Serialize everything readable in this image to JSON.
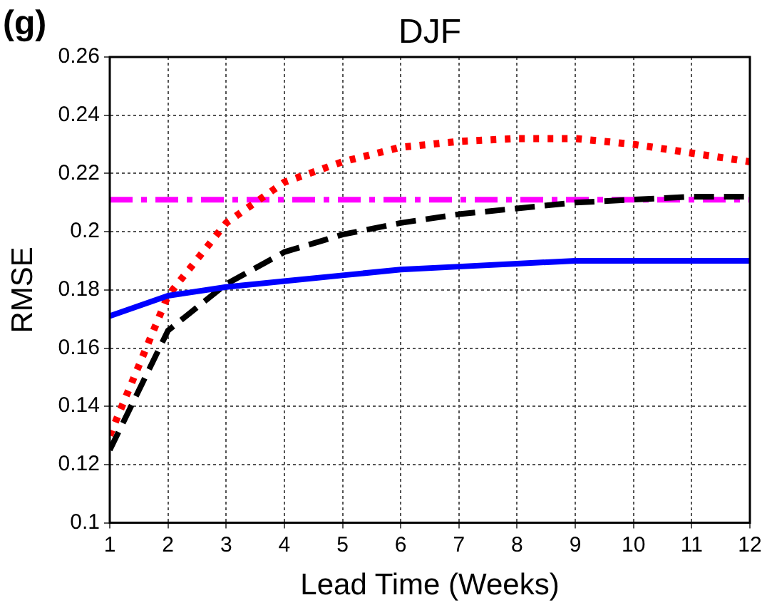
{
  "chart_data": {
    "type": "line",
    "title": "DJF",
    "xlabel": "Lead Time (Weeks)",
    "ylabel": "RMSE",
    "annotations": [
      "(g)"
    ],
    "x": [
      1,
      2,
      3,
      4,
      5,
      6,
      7,
      8,
      9,
      10,
      11,
      12
    ],
    "series": [
      {
        "color": "#0000ff",
        "line_style": "solid",
        "values": [
          0.171,
          0.178,
          0.181,
          0.183,
          0.185,
          0.187,
          0.188,
          0.189,
          0.19,
          0.19,
          0.19,
          0.19
        ]
      },
      {
        "color": "#ff0000",
        "line_style": "dotted",
        "values": [
          0.13,
          0.178,
          0.203,
          0.217,
          0.224,
          0.229,
          0.231,
          0.232,
          0.232,
          0.23,
          0.227,
          0.224
        ]
      },
      {
        "color": "#000000",
        "line_style": "dashed",
        "values": [
          0.125,
          0.166,
          0.182,
          0.193,
          0.199,
          0.203,
          0.206,
          0.208,
          0.21,
          0.211,
          0.212,
          0.212
        ]
      }
    ],
    "ref_lines": [
      {
        "axis": "y",
        "value": 0.211,
        "color": "#ff00ff",
        "line_style": "dashdot"
      }
    ],
    "xlim": [
      1,
      12
    ],
    "xticks": [
      1,
      2,
      3,
      4,
      5,
      6,
      7,
      8,
      9,
      10,
      11,
      12
    ],
    "ylim": [
      0.1,
      0.26
    ],
    "yticks": [
      0.1,
      0.12,
      0.14,
      0.16,
      0.18,
      0.2,
      0.22,
      0.24,
      0.26
    ],
    "grid": true,
    "legend": false,
    "marker": "none"
  }
}
